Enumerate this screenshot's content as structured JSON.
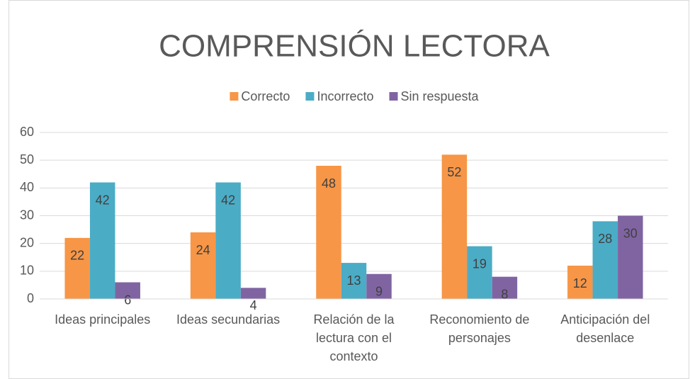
{
  "chart_data": {
    "type": "bar",
    "title": "COMPRENSIÓN LECTORA",
    "categories": [
      "Ideas principales",
      "Ideas secundarias",
      "Relación de la lectura con el contexto",
      "Reconomiento de personajes",
      "Anticipación del desenlace"
    ],
    "series": [
      {
        "name": "Correcto",
        "color": "#f79646",
        "values": [
          22,
          24,
          48,
          52,
          12
        ]
      },
      {
        "name": "Incorrecto",
        "color": "#4bacc6",
        "values": [
          42,
          42,
          13,
          19,
          28
        ]
      },
      {
        "name": "Sin respuesta",
        "color": "#8064a2",
        "values": [
          6,
          4,
          9,
          8,
          30
        ]
      }
    ],
    "ylim": [
      0,
      60
    ],
    "yticks": [
      0,
      10,
      20,
      30,
      40,
      50,
      60
    ],
    "grid": true,
    "legend": "top"
  }
}
